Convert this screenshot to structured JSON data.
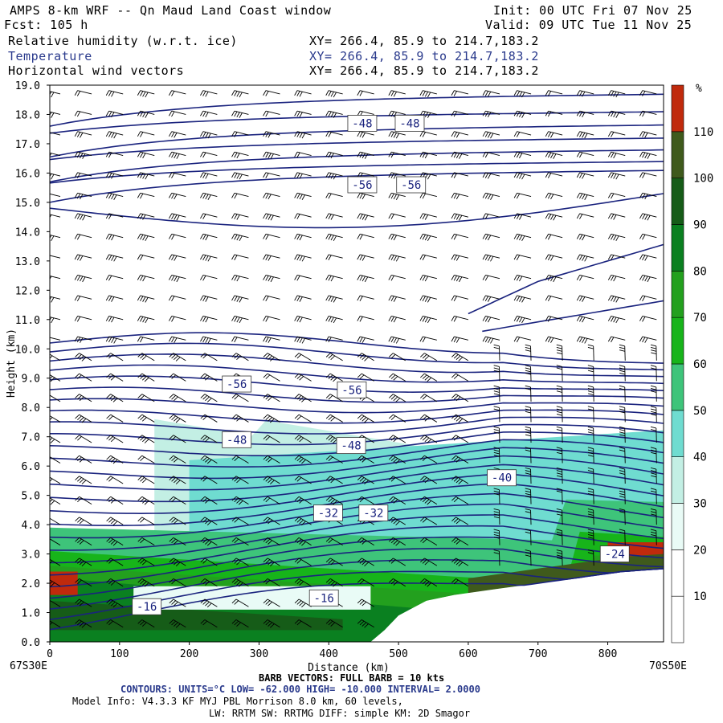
{
  "header": {
    "title": "AMPS 8-km WRF -- Qn Maud Land Coast window",
    "init": "Init: 00 UTC Fri 07 Nov 25",
    "fcst": "Fcst:  105 h",
    "valid": "Valid: 09 UTC Tue 11 Nov 25",
    "fields": [
      {
        "label": "Relative humidity (w.r.t. ice)",
        "xy": "XY= 266.4, 85.9 to 214.7,183.2"
      },
      {
        "label": "Temperature",
        "xy": "XY= 266.4, 85.9 to 214.7,183.2"
      },
      {
        "label": "Horizontal wind vectors",
        "xy": "XY= 266.4, 85.9 to 214.7,183.2"
      }
    ]
  },
  "footer": {
    "left_coord": "67S30E",
    "right_coord": "70S50E",
    "barb": "BARB VECTORS:  FULL BARB = 10 kts",
    "contours": "CONTOURS:  UNITS=°C  LOW=  -62.000       HIGH=  -10.000      INTERVAL=    2.0000",
    "model1": "Model Info: V4.3.3   KF       MYJ PBL  Morrison              8.0 km,  60 levels,",
    "model2": "LW: RRTM SW: RRTMG   DIFF: simple KM: 2D Smagor"
  },
  "colors": {
    "contour": "#1a237e",
    "rh": [
      "#ffffff",
      "#ffffff",
      "#e9fbf6",
      "#c3efe4",
      "#6fdcd0",
      "#3ec47a",
      "#17b41a",
      "#23a01e",
      "#0a8020",
      "#165c18",
      "#3f5a1c",
      "#c02a0c"
    ]
  },
  "chart_data": {
    "type": "contour",
    "title": "AMPS 8-km WRF -- Qn Maud Land Coast window",
    "xlabel": "Distance (km)",
    "ylabel": "Height (km)",
    "xlim": [
      0,
      880
    ],
    "ylim": [
      0,
      19
    ],
    "xticks": [
      0,
      100,
      200,
      300,
      400,
      500,
      600,
      700,
      800
    ],
    "yticks": [
      "0.0",
      "1.0",
      "2.0",
      "3.0",
      "4.0",
      "5.0",
      "6.0",
      "7.0",
      "8.0",
      "9.0",
      "10.0",
      "11.0",
      "12.0",
      "13.0",
      "14.0",
      "15.0",
      "16.0",
      "17.0",
      "18.0",
      "19.0"
    ],
    "colorbar": {
      "unit": "%",
      "ticks": [
        10,
        20,
        30,
        40,
        50,
        60,
        70,
        80,
        90,
        100,
        110
      ],
      "levels": [
        0,
        10,
        20,
        30,
        40,
        50,
        60,
        70,
        80,
        90,
        100,
        110,
        120
      ]
    },
    "contour_labels": [
      {
        "text": "-48",
        "x": 448,
        "y": 17.7
      },
      {
        "text": "-48",
        "x": 516,
        "y": 17.7
      },
      {
        "text": "-56",
        "x": 448,
        "y": 15.6
      },
      {
        "text": "-56",
        "x": 518,
        "y": 15.6
      },
      {
        "text": "-56",
        "x": 268,
        "y": 8.8
      },
      {
        "text": "-56",
        "x": 433,
        "y": 8.6
      },
      {
        "text": "-48",
        "x": 268,
        "y": 6.9
      },
      {
        "text": "-48",
        "x": 432,
        "y": 6.7
      },
      {
        "text": "-40",
        "x": 648,
        "y": 5.6
      },
      {
        "text": "-32",
        "x": 399,
        "y": 4.4
      },
      {
        "text": "-32",
        "x": 464,
        "y": 4.4
      },
      {
        "text": "-16",
        "x": 139,
        "y": 1.2
      },
      {
        "text": "-16",
        "x": 393,
        "y": 1.5
      },
      {
        "text": "-24",
        "x": 810,
        "y": 3.0
      }
    ],
    "terrain": [
      [
        0,
        0
      ],
      [
        460,
        0
      ],
      [
        480,
        0.4
      ],
      [
        500,
        0.9
      ],
      [
        540,
        1.4
      ],
      [
        580,
        1.6
      ],
      [
        640,
        1.8
      ],
      [
        700,
        2.0
      ],
      [
        760,
        2.2
      ],
      [
        820,
        2.4
      ],
      [
        880,
        2.5
      ]
    ]
  }
}
